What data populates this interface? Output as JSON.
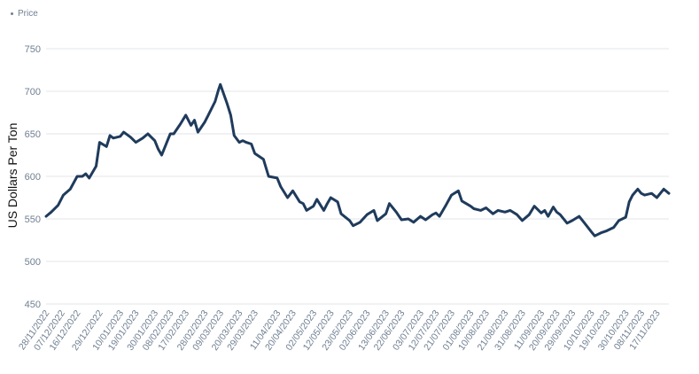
{
  "chart_data": {
    "type": "line",
    "ylabel": "US Dollars Per Ton",
    "ylim": [
      450,
      750
    ],
    "yticks": [
      450,
      500,
      550,
      600,
      650,
      700,
      750
    ],
    "grid": true,
    "legend_position": "top-left",
    "xtick_labels": [
      "28/11/2022",
      "07/12/2022",
      "16/12/2022",
      "29/12/2022",
      "10/01/2023",
      "19/01/2023",
      "30/01/2023",
      "08/02/2023",
      "17/02/2023",
      "28/02/2023",
      "09/03/2023",
      "20/03/2023",
      "29/03/2023",
      "11/04/2023",
      "20/04/2023",
      "02/05/2023",
      "12/05/2023",
      "23/05/2023",
      "02/06/2023",
      "13/06/2023",
      "22/06/2023",
      "03/07/2023",
      "12/07/2023",
      "21/07/2023",
      "01/08/2023",
      "10/08/2023",
      "21/08/2023",
      "31/08/2023",
      "11/09/2023",
      "20/09/2023",
      "29/09/2023",
      "10/10/2023",
      "19/10/2023",
      "30/10/2023",
      "08/11/2023",
      "17/11/2023"
    ],
    "series": [
      {
        "name": "Price",
        "color": "#1f3b5c",
        "x": [
          "2022-11-28",
          "2022-12-01",
          "2022-12-05",
          "2022-12-07",
          "2022-12-08",
          "2022-12-12",
          "2022-12-16",
          "2022-12-19",
          "2022-12-21",
          "2022-12-23",
          "2022-12-27",
          "2022-12-29",
          "2023-01-02",
          "2023-01-04",
          "2023-01-06",
          "2023-01-10",
          "2023-01-12",
          "2023-01-16",
          "2023-01-19",
          "2023-01-23",
          "2023-01-26",
          "2023-01-30",
          "2023-02-01",
          "2023-02-03",
          "2023-02-06",
          "2023-02-08",
          "2023-02-10",
          "2023-02-14",
          "2023-02-17",
          "2023-02-20",
          "2023-02-22",
          "2023-02-24",
          "2023-02-28",
          "2023-03-02",
          "2023-03-06",
          "2023-03-08",
          "2023-03-09",
          "2023-03-13",
          "2023-03-15",
          "2023-03-17",
          "2023-03-20",
          "2023-03-22",
          "2023-03-24",
          "2023-03-27",
          "2023-03-29",
          "2023-04-03",
          "2023-04-06",
          "2023-04-11",
          "2023-04-13",
          "2023-04-17",
          "2023-04-20",
          "2023-04-24",
          "2023-04-26",
          "2023-04-28",
          "2023-05-02",
          "2023-05-04",
          "2023-05-08",
          "2023-05-10",
          "2023-05-12",
          "2023-05-16",
          "2023-05-18",
          "2023-05-23",
          "2023-05-25",
          "2023-05-29",
          "2023-06-02",
          "2023-06-06",
          "2023-06-08",
          "2023-06-13",
          "2023-06-15",
          "2023-06-19",
          "2023-06-22",
          "2023-06-26",
          "2023-06-29",
          "2023-07-03",
          "2023-07-06",
          "2023-07-10",
          "2023-07-12",
          "2023-07-14",
          "2023-07-18",
          "2023-07-21",
          "2023-07-25",
          "2023-07-27",
          "2023-08-01",
          "2023-08-03",
          "2023-08-07",
          "2023-08-10",
          "2023-08-14",
          "2023-08-17",
          "2023-08-21",
          "2023-08-24",
          "2023-08-28",
          "2023-08-31",
          "2023-09-04",
          "2023-09-07",
          "2023-09-11",
          "2023-09-13",
          "2023-09-15",
          "2023-09-18",
          "2023-09-20",
          "2023-09-22",
          "2023-09-26",
          "2023-09-29",
          "2023-10-03",
          "2023-10-05",
          "2023-10-10",
          "2023-10-12",
          "2023-10-16",
          "2023-10-19",
          "2023-10-23",
          "2023-10-26",
          "2023-10-30",
          "2023-11-01",
          "2023-11-03",
          "2023-11-06",
          "2023-11-08",
          "2023-11-10",
          "2023-11-14",
          "2023-11-17",
          "2023-11-21",
          "2023-11-24"
        ],
        "y": [
          553,
          558,
          566,
          574,
          578,
          585,
          600,
          600,
          603,
          598,
          612,
          640,
          635,
          648,
          645,
          647,
          652,
          646,
          640,
          645,
          650,
          642,
          632,
          625,
          640,
          650,
          650,
          662,
          672,
          660,
          666,
          652,
          664,
          672,
          688,
          702,
          708,
          685,
          672,
          648,
          640,
          642,
          640,
          638,
          627,
          620,
          600,
          598,
          588,
          575,
          583,
          570,
          568,
          560,
          565,
          573,
          560,
          568,
          575,
          570,
          556,
          548,
          542,
          546,
          555,
          560,
          548,
          556,
          568,
          558,
          549,
          550,
          546,
          553,
          549,
          555,
          557,
          553,
          567,
          578,
          583,
          571,
          565,
          562,
          560,
          563,
          556,
          560,
          558,
          560,
          555,
          548,
          555,
          565,
          557,
          560,
          553,
          564,
          558,
          555,
          545,
          548,
          553,
          548,
          535,
          530,
          534,
          536,
          540,
          548,
          552,
          570,
          578,
          585,
          580,
          578,
          580,
          575,
          585,
          580
        ]
      }
    ]
  }
}
